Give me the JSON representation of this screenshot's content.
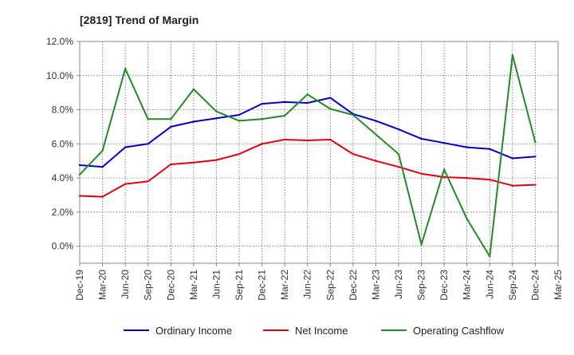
{
  "chart_data": {
    "type": "line",
    "title": "[2819]  Trend of Margin",
    "xlabel": "",
    "ylabel": "",
    "categories": [
      "Dec-19",
      "Mar-20",
      "Jun-20",
      "Sep-20",
      "Dec-20",
      "Mar-21",
      "Jun-21",
      "Sep-21",
      "Dec-21",
      "Mar-22",
      "Jun-22",
      "Sep-22",
      "Dec-22",
      "Mar-23",
      "Jun-23",
      "Sep-23",
      "Dec-23",
      "Mar-24",
      "Jun-24",
      "Sep-24",
      "Dec-24",
      "Mar-25"
    ],
    "ylim": [
      -1.0,
      12.0
    ],
    "yticks": [
      0,
      2,
      4,
      6,
      8,
      10,
      12
    ],
    "ytick_labels": [
      "0.0%",
      "2.0%",
      "4.0%",
      "6.0%",
      "8.0%",
      "10.0%",
      "12.0%"
    ],
    "grid": true,
    "legend_position": "bottom",
    "series": [
      {
        "name": "Ordinary Income",
        "color": "#0000cc",
        "values": [
          4.75,
          4.65,
          5.8,
          6.0,
          7.0,
          7.3,
          7.5,
          7.7,
          8.35,
          8.45,
          8.4,
          8.7,
          7.75,
          7.35,
          6.85,
          6.3,
          6.05,
          5.8,
          5.7,
          5.15,
          5.25,
          null
        ]
      },
      {
        "name": "Net Income",
        "color": "#e8000b",
        "values": [
          2.95,
          2.9,
          3.65,
          3.8,
          4.8,
          4.9,
          5.05,
          5.4,
          6.0,
          6.25,
          6.2,
          6.25,
          5.4,
          5.0,
          4.65,
          4.25,
          4.05,
          4.0,
          3.9,
          3.55,
          3.6,
          null
        ]
      },
      {
        "name": "Operating Cashflow",
        "color": "#228b22",
        "values": [
          4.2,
          5.6,
          10.4,
          7.45,
          7.45,
          9.2,
          7.9,
          7.35,
          7.45,
          7.65,
          8.9,
          8.05,
          7.7,
          6.55,
          5.4,
          0.1,
          4.5,
          1.6,
          -0.6,
          11.2,
          6.1,
          null
        ]
      }
    ]
  }
}
